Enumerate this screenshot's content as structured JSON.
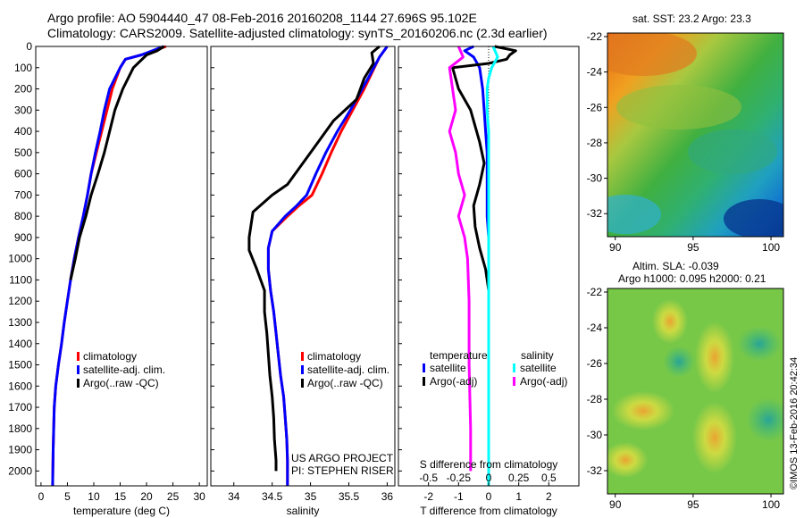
{
  "header": {
    "title_line1": "Argo profile: AO 5904440_47 08-Feb-2016 20160208_1144 27.696S 95.102E",
    "title_line2": "Climatology: CARS2009. Satellite-adjusted climatology: synTS_20160206.nc (2.3d earlier)"
  },
  "colors": {
    "climatology": "#ff0000",
    "satellite": "#0000ff",
    "argo": "#000000",
    "sal_satellite": "#00ffff",
    "sal_argo": "#ff00ff"
  },
  "depth_ticks": [
    "0",
    "100",
    "200",
    "300",
    "400",
    "500",
    "600",
    "700",
    "800",
    "900",
    "1000",
    "1100",
    "1200",
    "1300",
    "1400",
    "1500",
    "1600",
    "1700",
    "1800",
    "1900",
    "2000"
  ],
  "depth_tick_values": [
    0,
    100,
    200,
    300,
    400,
    500,
    600,
    700,
    800,
    900,
    1000,
    1100,
    1200,
    1300,
    1400,
    1500,
    1600,
    1700,
    1800,
    1900,
    2000
  ],
  "chart_data": [
    {
      "type": "line",
      "xlabel": "temperature (deg C)",
      "ylabel": "",
      "xlim": [
        -1,
        31.5
      ],
      "ylim": [
        2070,
        0
      ],
      "xticks": [
        0,
        5,
        10,
        15,
        20,
        25,
        30
      ],
      "legend": [
        "climatology",
        "satellite-adj. clim.",
        "Argo(..raw -QC)"
      ],
      "series": [
        {
          "name": "climatology",
          "color": "#ff0000",
          "x": [
            23.7,
            19,
            16,
            15,
            13.5,
            12.5,
            11.5,
            10.5,
            9.5,
            8.8,
            8,
            7.1,
            6.3,
            5.6,
            5.0,
            4.4,
            3.9,
            3.3,
            2.8,
            2.5,
            2.3,
            2.2
          ],
          "y": [
            0,
            40,
            60,
            100,
            200,
            300,
            400,
            500,
            600,
            700,
            800,
            900,
            1000,
            1100,
            1200,
            1300,
            1400,
            1500,
            1600,
            1700,
            1900,
            2070
          ]
        },
        {
          "name": "satellite-adj. clim.",
          "color": "#0000ff",
          "x": [
            23.2,
            19,
            16,
            15,
            13,
            12,
            11.2,
            10.3,
            9.5,
            8.8,
            8,
            7.1,
            6.3,
            5.6,
            5.0,
            4.4,
            3.9,
            3.3,
            2.8,
            2.5,
            2.3,
            2.2
          ],
          "y": [
            0,
            40,
            60,
            100,
            200,
            300,
            400,
            500,
            600,
            700,
            800,
            900,
            1000,
            1100,
            1200,
            1300,
            1400,
            1500,
            1600,
            1700,
            1900,
            2070
          ]
        },
        {
          "name": "Argo(..raw -QC)",
          "color": "#000000",
          "x": [
            23.3,
            22,
            20,
            17.5,
            15.5,
            14,
            13,
            12,
            10.8,
            9.5,
            8.5,
            7.3,
            6.5,
            5.6
          ],
          "y": [
            0,
            20,
            40,
            100,
            200,
            300,
            400,
            500,
            600,
            700,
            800,
            900,
            1000,
            1100
          ]
        }
      ]
    },
    {
      "type": "line",
      "xlabel": "salinity",
      "ylabel": "",
      "xlim": [
        33.7,
        36.1
      ],
      "ylim": [
        2070,
        0
      ],
      "xticks": [
        34,
        34.5,
        35,
        35.5,
        36
      ],
      "xticklabels": [
        "34",
        "34.5",
        "35",
        "35.5",
        "36"
      ],
      "legend": [
        "climatology",
        "satellite-adj. clim.",
        "Argo(..raw -QC)"
      ],
      "annotation": [
        "US ARGO PROJECT",
        "PI: STEPHEN RISER"
      ],
      "series": [
        {
          "name": "climatology",
          "color": "#ff0000",
          "x": [
            36.0,
            35.9,
            35.7,
            35.55,
            35.4,
            35.27,
            35.15,
            35.02,
            34.85,
            34.7,
            34.5,
            34.45,
            34.45,
            34.48,
            34.52,
            34.55,
            34.58,
            34.61,
            34.65,
            34.67,
            34.69,
            34.7,
            34.7
          ],
          "y": [
            0,
            50,
            200,
            300,
            400,
            500,
            600,
            700,
            750,
            800,
            870,
            950,
            1050,
            1150,
            1250,
            1350,
            1450,
            1550,
            1650,
            1750,
            1850,
            1950,
            2070
          ]
        },
        {
          "name": "satellite-adj. clim.",
          "color": "#0000ff",
          "x": [
            36.0,
            35.9,
            35.75,
            35.52,
            35.35,
            35.2,
            35.07,
            34.95,
            34.82,
            34.67,
            34.5,
            34.45,
            34.45,
            34.48,
            34.52,
            34.55,
            34.58,
            34.61,
            34.65,
            34.67,
            34.69,
            34.7,
            34.7
          ],
          "y": [
            0,
            50,
            150,
            300,
            400,
            500,
            600,
            700,
            750,
            800,
            870,
            950,
            1050,
            1150,
            1250,
            1350,
            1450,
            1550,
            1650,
            1750,
            1850,
            1950,
            2070
          ]
        },
        {
          "name": "Argo(..raw -QC)",
          "color": "#000000",
          "x": [
            35.9,
            35.8,
            35.82,
            35.7,
            35.6,
            35.3,
            35.1,
            34.9,
            34.7,
            34.5,
            34.25,
            34.2,
            34.2,
            34.3,
            34.4,
            34.4,
            34.43,
            34.45,
            34.47,
            34.5,
            34.52,
            34.53,
            34.55,
            34.55
          ],
          "y": [
            0,
            30,
            80,
            150,
            250,
            350,
            450,
            550,
            650,
            700,
            780,
            900,
            960,
            1050,
            1150,
            1250,
            1350,
            1450,
            1550,
            1650,
            1750,
            1850,
            1950,
            2000
          ]
        }
      ]
    },
    {
      "type": "line",
      "xlabel": "T difference from climatology",
      "x2label": "S difference from climatology",
      "ylabel": "",
      "xlim": [
        -3,
        3
      ],
      "ylim": [
        2070,
        0
      ],
      "xticks": [
        -2,
        -1,
        0,
        1,
        2
      ],
      "x2lim": [
        -0.75,
        0.75
      ],
      "x2ticks": [
        -0.5,
        -0.25,
        0,
        0.25,
        0.5
      ],
      "x2ticklabels": [
        "-0.5",
        "-0.25",
        "0",
        "0.25",
        "0.5"
      ],
      "legend_temperature": {
        "heading": "temperature",
        "items": [
          "satellite",
          "Argo(-adj)"
        ]
      },
      "legend_salinity": {
        "heading": "salinity",
        "items": [
          "satellite",
          "Argo(-adj)"
        ]
      },
      "series": [
        {
          "name": "temperature satellite",
          "color": "#0000ff",
          "x": [
            -0.5,
            -0.8,
            -0.5,
            -0.3,
            -0.2,
            -0.15,
            -0.1,
            -0.05,
            -0.05,
            -0.05,
            -0.05,
            0,
            0,
            0
          ],
          "y": [
            0,
            20,
            50,
            100,
            200,
            300,
            400,
            500,
            600,
            700,
            800,
            900,
            1000,
            2070
          ]
        },
        {
          "name": "temperature Argo(-adj)",
          "color": "#000000",
          "x": [
            0.2,
            0.9,
            0.7,
            0.6,
            0,
            -1.2,
            -1.0,
            -0.6,
            -0.3,
            -0.15,
            -0.3,
            -0.5,
            -0.45,
            -0.3,
            -0.1,
            0
          ],
          "y": [
            0,
            20,
            40,
            60,
            80,
            100,
            200,
            300,
            450,
            550,
            650,
            750,
            850,
            950,
            1050,
            1150
          ]
        },
        {
          "name": "salinity satellite",
          "color": "#00ffff",
          "x": [
            0.15,
            0.3,
            0.1,
            0.0,
            -0.05,
            -0.05,
            0,
            0,
            0,
            0
          ],
          "y": [
            0,
            50,
            100,
            150,
            200,
            300,
            400,
            500,
            1000,
            2070
          ]
        },
        {
          "name": "salinity Argo(-adj)",
          "color": "#ff00ff",
          "x": [
            -1.0,
            -0.85,
            -1.3,
            -1.2,
            -1.1,
            -1.3,
            -1.1,
            -1.0,
            -0.8,
            -0.9,
            -1.0,
            -0.8,
            -0.7,
            -0.65,
            -0.65,
            -0.6,
            -0.6
          ],
          "y": [
            0,
            50,
            100,
            200,
            300,
            400,
            500,
            600,
            700,
            750,
            800,
            900,
            1000,
            1200,
            1500,
            1800,
            2000
          ]
        }
      ]
    }
  ],
  "maps": {
    "sst": {
      "title": "sat. SST: 23.2 Argo: 23.3",
      "yticks": [
        "-22",
        "-24",
        "-26",
        "-28",
        "-30",
        "-32"
      ],
      "xticks": [
        "90",
        "95",
        "100"
      ]
    },
    "sla": {
      "title_line1": "Altim. SLA: -0.039",
      "title_line2": "Argo h1000: 0.095 h2000: 0.21",
      "yticks": [
        "-22",
        "-24",
        "-26",
        "-28",
        "-30",
        "-32"
      ],
      "xticks": [
        "90",
        "95",
        "100"
      ]
    }
  },
  "credit": "©IMOS 13-Feb-2016 20:42:34"
}
